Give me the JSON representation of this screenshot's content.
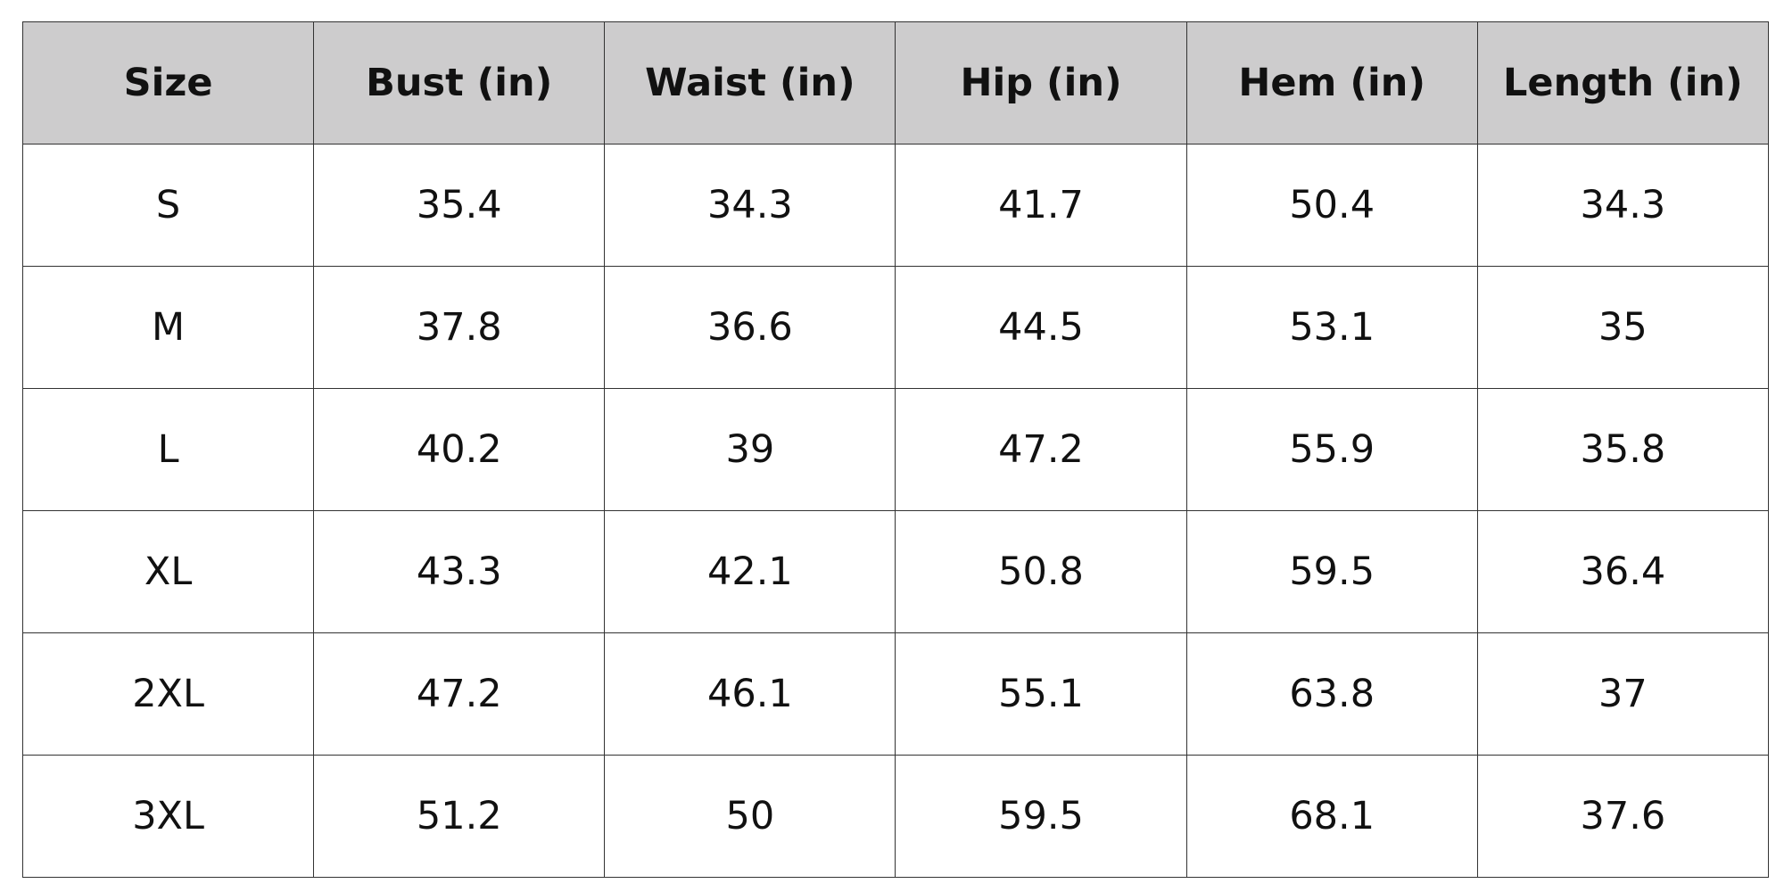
{
  "table": {
    "header": [
      "Size",
      "Bust (in)",
      "Waist (in)",
      "Hip (in)",
      "Hem (in)",
      "Length (in)"
    ],
    "rows": [
      [
        "S",
        35.4,
        34.3,
        41.7,
        50.4,
        34.3
      ],
      [
        "M",
        37.8,
        36.6,
        44.5,
        53.1,
        35
      ],
      [
        "L",
        40.2,
        39,
        47.2,
        55.9,
        35.8
      ],
      [
        "XL",
        43.3,
        42.1,
        50.8,
        59.5,
        36.4
      ],
      [
        "2XL",
        47.2,
        46.1,
        55.1,
        63.8,
        37
      ],
      [
        "3XL",
        51.2,
        50,
        59.5,
        68.1,
        37.6
      ]
    ]
  }
}
